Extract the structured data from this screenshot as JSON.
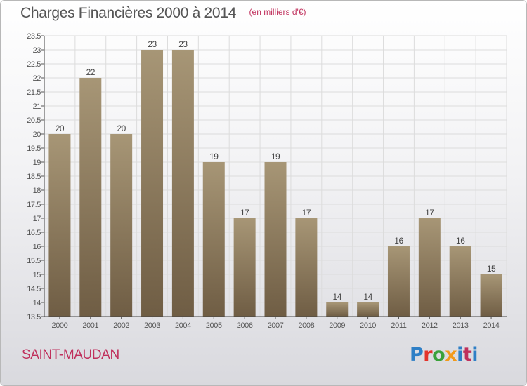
{
  "chart_data": {
    "type": "bar",
    "title": "Charges Financières 2000 à 2014",
    "subtitle": "(en milliers d'€)",
    "categories": [
      "2000",
      "2001",
      "2002",
      "2003",
      "2004",
      "2005",
      "2006",
      "2007",
      "2008",
      "2009",
      "2010",
      "2011",
      "2012",
      "2013",
      "2014"
    ],
    "values": [
      20,
      22,
      20,
      23,
      23,
      19,
      17,
      19,
      17,
      14,
      14,
      16,
      17,
      16,
      15
    ],
    "data_labels": [
      "20",
      "22",
      "20",
      "23",
      "23",
      "19",
      "17",
      "19",
      "17",
      "14",
      "14",
      "16",
      "17",
      "16",
      "15"
    ],
    "ylim": [
      13.5,
      23.5
    ],
    "yticks": [
      "13.5",
      "14",
      "14.5",
      "15",
      "15.5",
      "16",
      "16.5",
      "17",
      "17.5",
      "18",
      "18.5",
      "19",
      "19.5",
      "20",
      "20.5",
      "21",
      "21.5",
      "22",
      "22.5",
      "23",
      "23.5"
    ],
    "grid": true,
    "bar_color_top": "#a79676",
    "bar_color_bottom": "#6f5d44"
  },
  "footer": {
    "place": "SAINT-MAUDAN",
    "logo_letters": [
      "P",
      "r",
      "o",
      "x",
      "i",
      "t",
      "i"
    ]
  },
  "colors": {
    "accent": "#c0305c",
    "title": "#555555"
  }
}
